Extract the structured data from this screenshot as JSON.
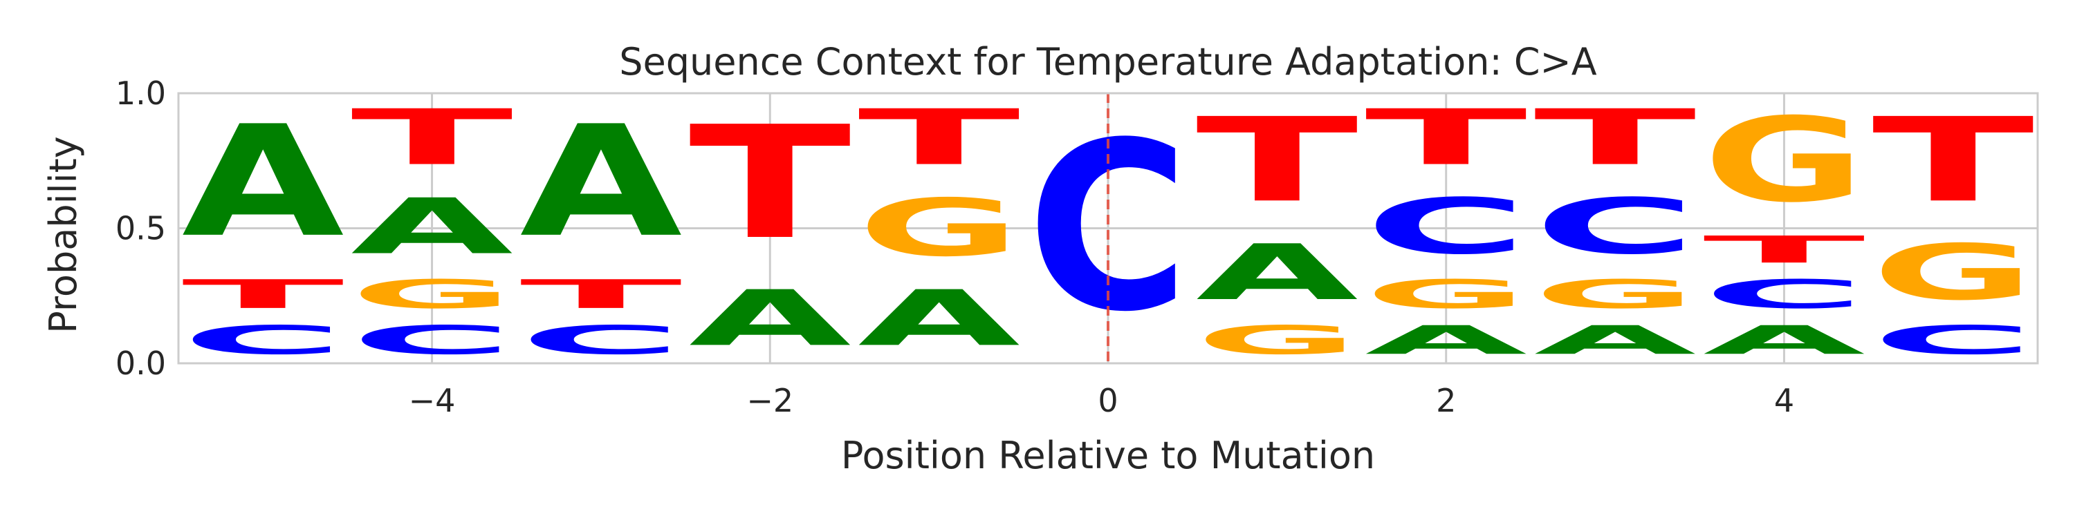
{
  "chart_data": {
    "type": "sequence-logo",
    "title": "Sequence Context for Temperature Adaptation: C>A",
    "xlabel": "Position Relative to Mutation",
    "ylabel": "Probability",
    "xlim": [
      -5.5,
      5.5
    ],
    "ylim": [
      0,
      1
    ],
    "xticks": [
      -4,
      -2,
      0,
      2,
      4
    ],
    "xtick_labels": [
      "−4",
      "−2",
      "0",
      "2",
      "4"
    ],
    "yticks": [
      0,
      0.5,
      1
    ],
    "ytick_labels": [
      "0.0",
      "0.5",
      "1.0"
    ],
    "grid": true,
    "mutation_marker": {
      "x": 0,
      "style": "dashed",
      "color": "#e74c3c"
    },
    "colors": {
      "A": "#008000",
      "C": "#0000ff",
      "G": "#ffa500",
      "T": "#ff0000"
    },
    "positions": [
      {
        "x": -5,
        "stack": [
          {
            "base": "C",
            "p": 0.17
          },
          {
            "base": "T",
            "p": 0.17
          },
          {
            "base": "A",
            "p": 0.66
          }
        ]
      },
      {
        "x": -4,
        "stack": [
          {
            "base": "C",
            "p": 0.17
          },
          {
            "base": "G",
            "p": 0.17
          },
          {
            "base": "A",
            "p": 0.33
          },
          {
            "base": "T",
            "p": 0.33
          }
        ]
      },
      {
        "x": -3,
        "stack": [
          {
            "base": "C",
            "p": 0.17
          },
          {
            "base": "T",
            "p": 0.17
          },
          {
            "base": "A",
            "p": 0.66
          }
        ]
      },
      {
        "x": -2,
        "stack": [
          {
            "base": "A",
            "p": 0.33
          },
          {
            "base": "T",
            "p": 0.67
          }
        ]
      },
      {
        "x": -1,
        "stack": [
          {
            "base": "A",
            "p": 0.33
          },
          {
            "base": "G",
            "p": 0.34
          },
          {
            "base": "T",
            "p": 0.33
          }
        ]
      },
      {
        "x": 0,
        "stack": [
          {
            "base": "C",
            "p": 1.0
          }
        ]
      },
      {
        "x": 1,
        "stack": [
          {
            "base": "G",
            "p": 0.17
          },
          {
            "base": "A",
            "p": 0.33
          },
          {
            "base": "T",
            "p": 0.5
          }
        ]
      },
      {
        "x": 2,
        "stack": [
          {
            "base": "A",
            "p": 0.17
          },
          {
            "base": "G",
            "p": 0.17
          },
          {
            "base": "C",
            "p": 0.33
          },
          {
            "base": "T",
            "p": 0.33
          }
        ]
      },
      {
        "x": 3,
        "stack": [
          {
            "base": "A",
            "p": 0.17
          },
          {
            "base": "G",
            "p": 0.17
          },
          {
            "base": "C",
            "p": 0.33
          },
          {
            "base": "T",
            "p": 0.33
          }
        ]
      },
      {
        "x": 4,
        "stack": [
          {
            "base": "A",
            "p": 0.17
          },
          {
            "base": "C",
            "p": 0.17
          },
          {
            "base": "T",
            "p": 0.16
          },
          {
            "base": "G",
            "p": 0.5
          }
        ]
      },
      {
        "x": 5,
        "stack": [
          {
            "base": "C",
            "p": 0.17
          },
          {
            "base": "G",
            "p": 0.33
          },
          {
            "base": "T",
            "p": 0.5
          }
        ]
      }
    ]
  }
}
